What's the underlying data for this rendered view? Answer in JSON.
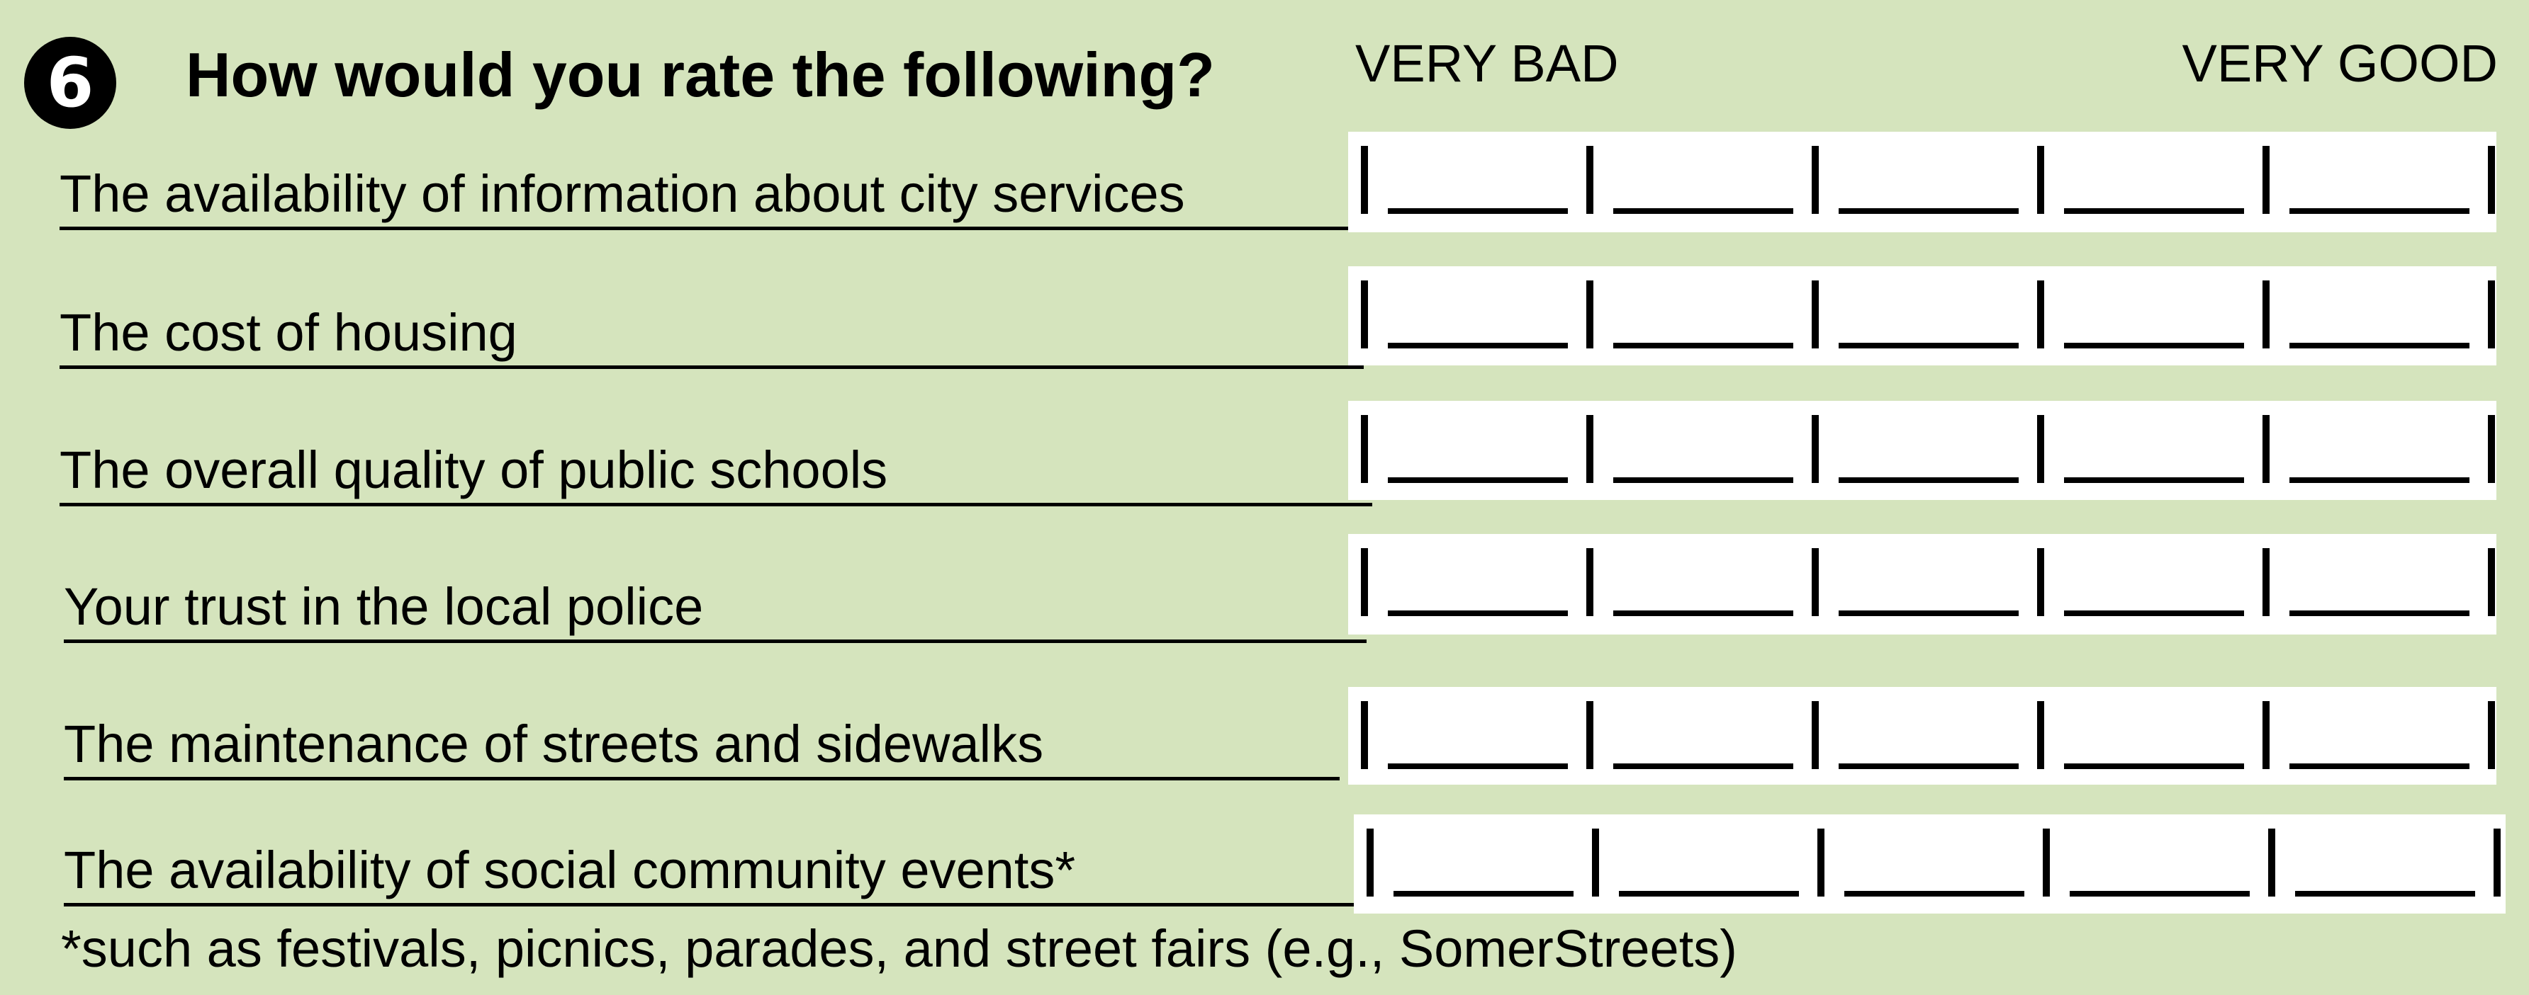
{
  "question": {
    "number": "6",
    "title": "How would you rate the following?"
  },
  "scale": {
    "low_label": "VERY BAD",
    "high_label": "VERY GOOD",
    "option_count": 5
  },
  "rows": [
    {
      "label": "The availability of information about city services"
    },
    {
      "label": "The cost of housing"
    },
    {
      "label": "The overall quality of public schools"
    },
    {
      "label": "Your trust in the local police"
    },
    {
      "label": "The maintenance of streets and sidewalks"
    },
    {
      "label": "The availability of social community events*"
    }
  ],
  "footnote": "*such  as festivals, picnics, parades, and street fairs (e.g., SomerStreets)",
  "colors": {
    "background": "#d5e4bd",
    "scale_box": "#ffffff",
    "ink": "#000000"
  }
}
